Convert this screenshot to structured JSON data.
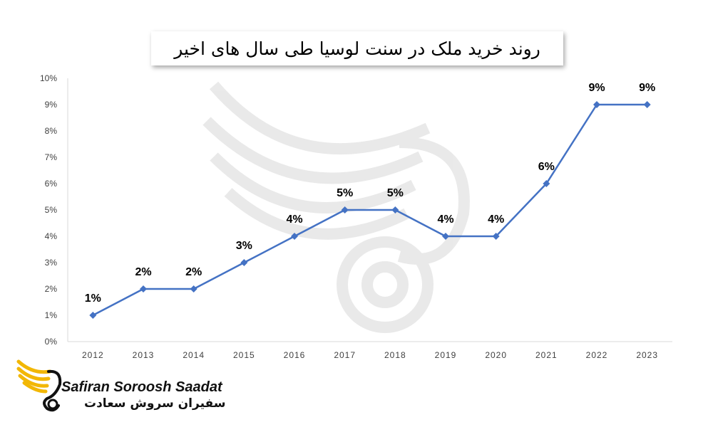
{
  "chart_data": {
    "type": "line",
    "title": "روند خرید ملک در سنت لوسیا طی سال های اخیر",
    "categories": [
      "2012",
      "2013",
      "2014",
      "2015",
      "2016",
      "2017",
      "2018",
      "2019",
      "2020",
      "2021",
      "2022",
      "2023"
    ],
    "values": [
      1,
      2,
      2,
      3,
      4,
      5,
      5,
      4,
      4,
      6,
      9,
      9
    ],
    "data_labels": [
      "1%",
      "2%",
      "2%",
      "3%",
      "4%",
      "5%",
      "5%",
      "4%",
      "4%",
      "6%",
      "9%",
      "9%"
    ],
    "y_ticks": [
      "0%",
      "1%",
      "2%",
      "3%",
      "4%",
      "5%",
      "6%",
      "7%",
      "8%",
      "9%",
      "10%"
    ],
    "ylim": [
      0,
      10
    ],
    "grid": false,
    "line_color": "#4472C4"
  },
  "brand": {
    "name_en": "Safiran Soroosh Saadat",
    "name_fa": "سفیران سروش سعادت",
    "wing_color": "#F2B705"
  }
}
